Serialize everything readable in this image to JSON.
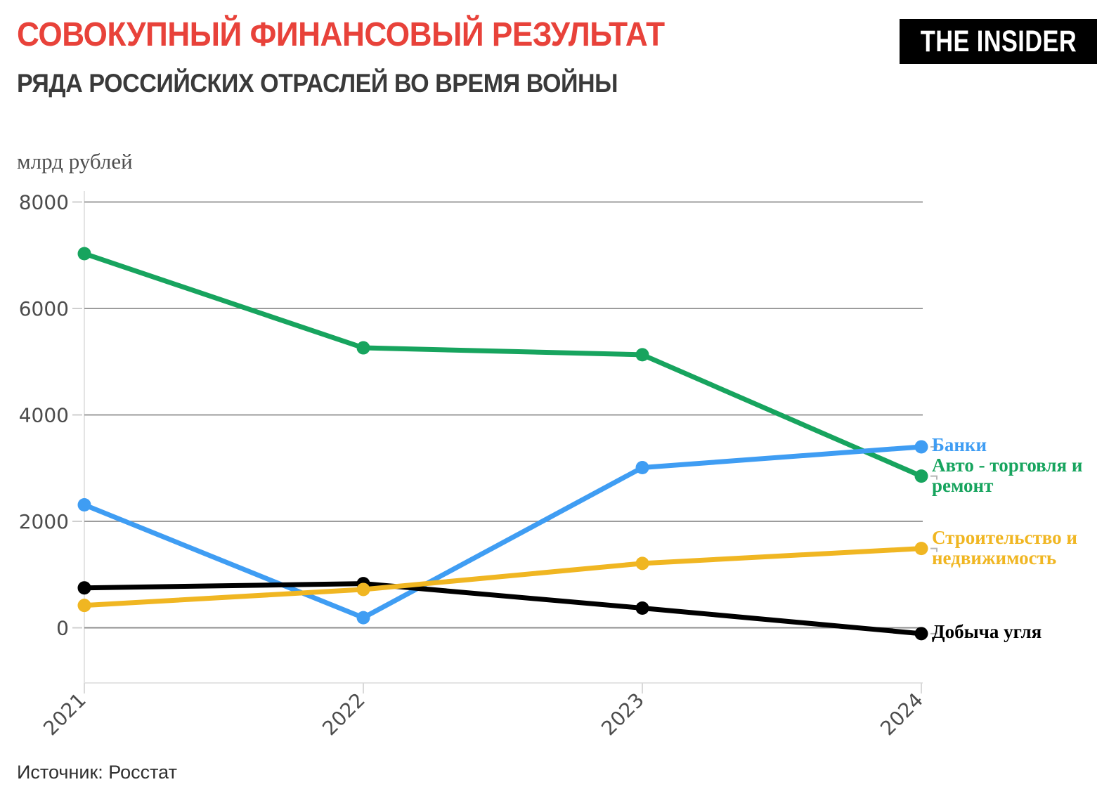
{
  "header": {
    "title": "СОВОКУПНЫЙ ФИНАНСОВЫЙ РЕЗУЛЬТАТ",
    "subtitle": "РЯДА РОССИЙСКИХ ОТРАСЛЕЙ ВО ВРЕМЯ ВОЙНЫ",
    "title_color": "#e8423a",
    "logo_text": "THE INSIDER"
  },
  "chart_data": {
    "type": "line",
    "unit_label": "млрд рублей",
    "categories": [
      "2021",
      "2022",
      "2023",
      "2024"
    ],
    "y_ticks": [
      0,
      2000,
      4000,
      6000,
      8000
    ],
    "ylim": [
      -1000,
      8200
    ],
    "grid": "horizontal",
    "legend_position": "right-of-line-ends",
    "series": [
      {
        "id": "avto",
        "name": "Авто - торговля и ремонт",
        "label_lines": [
          "Авто - торговля и",
          "ремонт"
        ],
        "color": "#17a45e",
        "values": [
          7030,
          5260,
          5130,
          2850
        ]
      },
      {
        "id": "banki",
        "name": "Банки",
        "label_lines": [
          "Банки"
        ],
        "color": "#3f9df3",
        "values": [
          2310,
          190,
          3010,
          3400
        ]
      },
      {
        "id": "dobycha-uglya",
        "name": "Добыча угля",
        "label_lines": [
          "Добыча угля"
        ],
        "color": "#000000",
        "values": [
          750,
          830,
          370,
          -110
        ]
      },
      {
        "id": "stroitelstvo",
        "name": "Строительство и недвижимость",
        "label_lines": [
          "Строительство и",
          "недвижимость"
        ],
        "color": "#f0b622",
        "values": [
          420,
          720,
          1210,
          1490
        ]
      }
    ]
  },
  "footer": {
    "source": "Источник: Росстат"
  }
}
